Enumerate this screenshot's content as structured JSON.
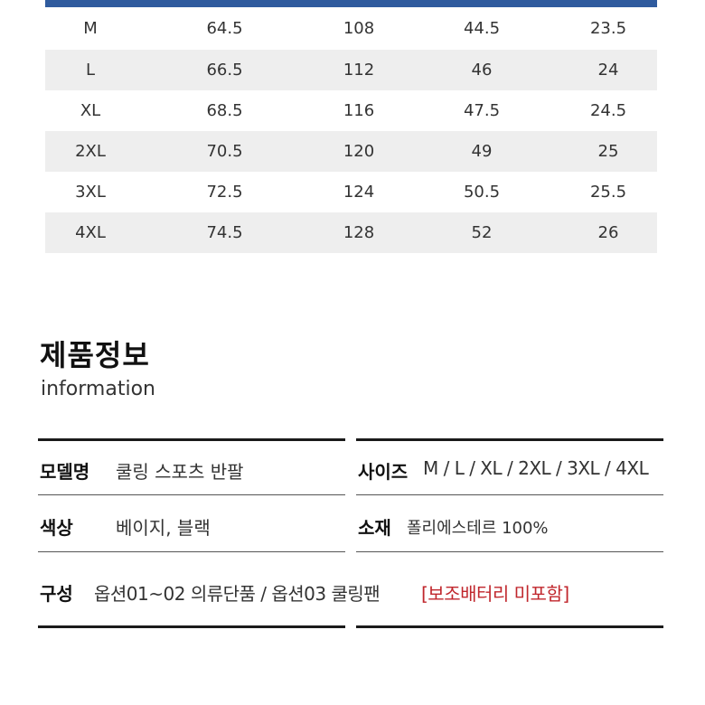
{
  "size_table": {
    "rows": [
      [
        "M",
        "64.5",
        "108",
        "44.5",
        "23.5"
      ],
      [
        "L",
        "66.5",
        "112",
        "46",
        "24"
      ],
      [
        "XL",
        "68.5",
        "116",
        "47.5",
        "24.5"
      ],
      [
        "2XL",
        "70.5",
        "120",
        "49",
        "25"
      ],
      [
        "3XL",
        "72.5",
        "124",
        "50.5",
        "25.5"
      ],
      [
        "4XL",
        "74.5",
        "128",
        "52",
        "26"
      ]
    ],
    "header_color": "#2f5b9e",
    "stripe_color": "#eeeeee"
  },
  "product_info": {
    "title": "제품정보",
    "subtitle": "information",
    "model_label": "모델명",
    "model_value": "쿨링 스포츠 반팔",
    "size_label": "사이즈",
    "size_value": "M / L / XL / 2XL / 3XL / 4XL",
    "color_label": "색상",
    "color_value": "베이지, 블랙",
    "material_label": "소재",
    "material_value": "폴리에스테르 100%",
    "composition_label": "구성",
    "composition_value": "옵션01~02 의류단품 / 옵션03 쿨링팬",
    "composition_note": "[보조배터리 미포함]",
    "note_color": "#c0262c"
  }
}
